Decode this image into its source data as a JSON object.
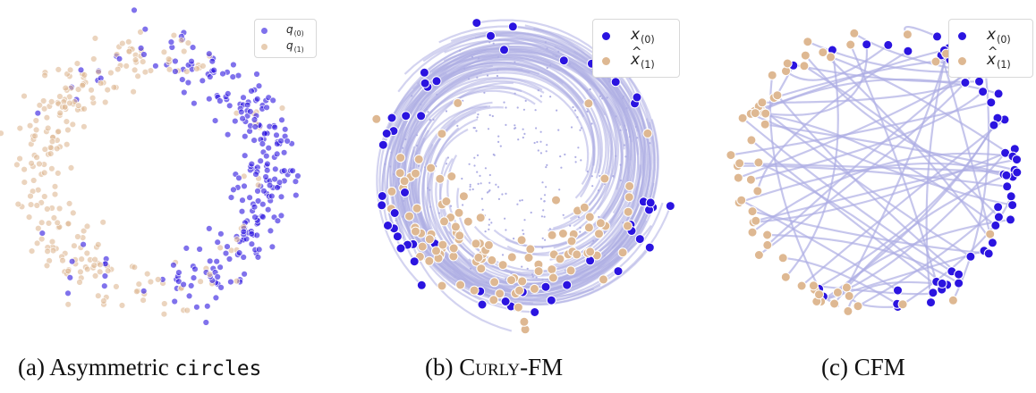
{
  "colors": {
    "source": "#2b14e0",
    "target": "#deb892",
    "path": "#aeaee4"
  },
  "panels": [
    {
      "id": "a",
      "caption_prefix": "(a) Asymmetric ",
      "caption_mono": "circles",
      "legend": [
        {
          "base": "q",
          "sub": "(0)",
          "hat": false,
          "color_key": "source"
        },
        {
          "base": "q",
          "sub": "(1)",
          "hat": false,
          "color_key": "target"
        }
      ]
    },
    {
      "id": "b",
      "caption_prefix": "(b) ",
      "caption_sc": "Curly",
      "caption_suffix": "-FM",
      "legend": [
        {
          "base": "x",
          "sub": "(0)",
          "hat": false,
          "color_key": "source"
        },
        {
          "base": "x",
          "sub": "(1)",
          "hat": true,
          "color_key": "target"
        }
      ]
    },
    {
      "id": "c",
      "caption_prefix": "(c) CFM",
      "legend": [
        {
          "base": "x",
          "sub": "(0)",
          "hat": false,
          "color_key": "source"
        },
        {
          "base": "x",
          "sub": "(1)",
          "hat": true,
          "color_key": "target"
        }
      ]
    }
  ]
}
